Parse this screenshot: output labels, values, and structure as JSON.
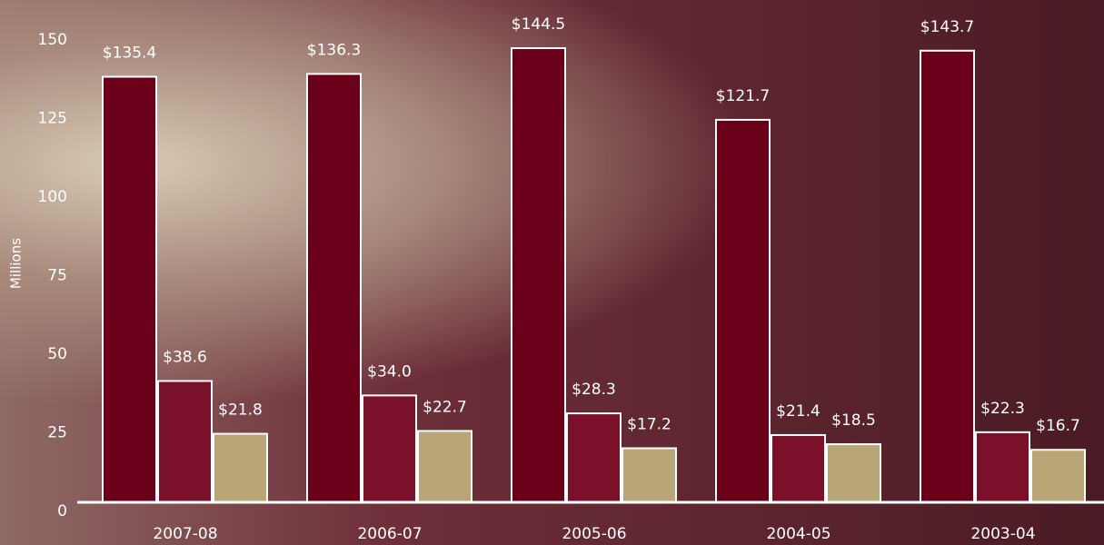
{
  "chart_data": {
    "type": "bar",
    "y_label": "Millions",
    "categories": [
      "2007-08",
      "2006-07",
      "2005-06",
      "2004-05",
      "2003-04"
    ],
    "series": [
      {
        "color": "#6a0019",
        "values": [
          135.4,
          136.3,
          144.5,
          121.7,
          143.7
        ],
        "value_labels": [
          "$135.4",
          "$136.3",
          "$144.5",
          "$121.7",
          "$143.7"
        ]
      },
      {
        "color": "#7a1029",
        "values": [
          38.6,
          34.0,
          28.3,
          21.4,
          22.3
        ],
        "value_labels": [
          "$38.6",
          "$34.0",
          "$28.3",
          "$21.4",
          "$22.3"
        ]
      },
      {
        "color": "#b8a677",
        "values": [
          21.8,
          22.7,
          17.2,
          18.5,
          16.7
        ],
        "value_labels": [
          "$21.8",
          "$22.7",
          "$17.2",
          "$18.5",
          "$16.7"
        ]
      }
    ],
    "ylim": [
      0,
      150
    ],
    "yticks": [
      0,
      25,
      50,
      75,
      100,
      125,
      150
    ],
    "grid": false
  }
}
